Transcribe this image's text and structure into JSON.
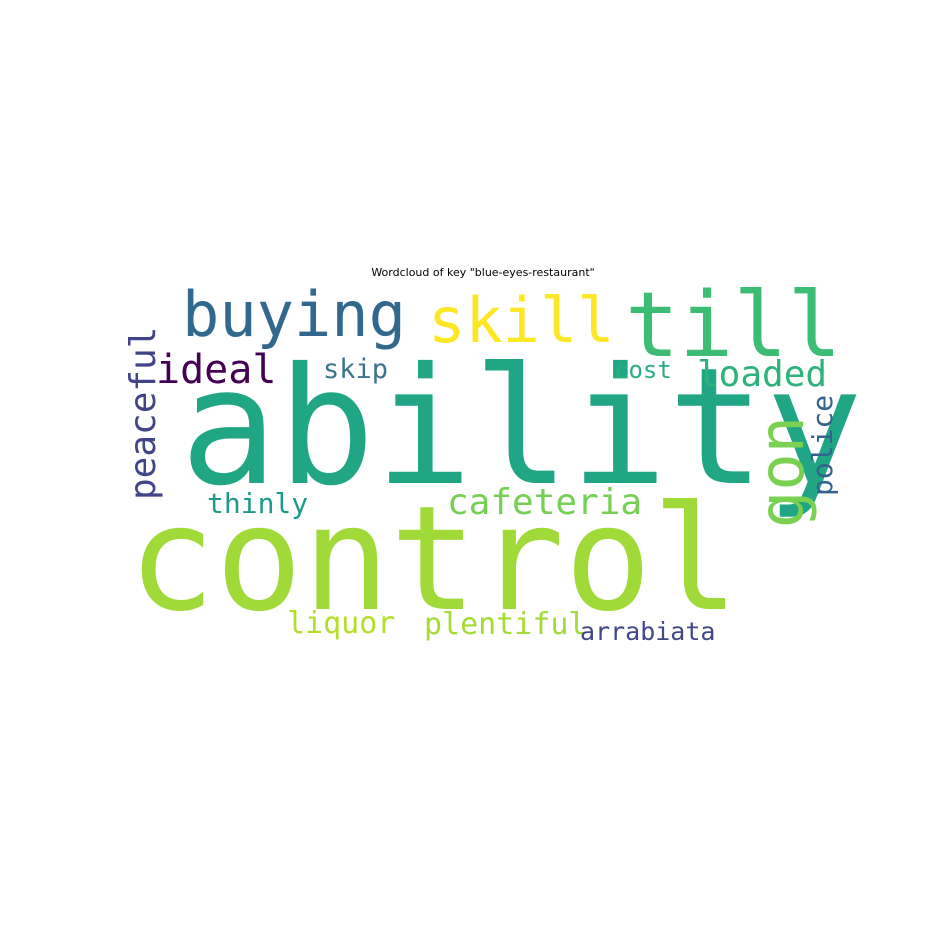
{
  "chart_data": {
    "type": "wordcloud",
    "title": "Wordcloud of key \"blue-eyes-restaurant\"",
    "words": [
      {
        "text": "ability",
        "color": "#21a685"
      },
      {
        "text": "control",
        "color": "#a0da39"
      },
      {
        "text": "till",
        "color": "#3dbc74"
      },
      {
        "text": "skill",
        "color": "#fde725"
      },
      {
        "text": "buying",
        "color": "#31688e"
      },
      {
        "text": "cafeteria",
        "color": "#75d054"
      },
      {
        "text": "loaded",
        "color": "#2db27d"
      },
      {
        "text": "peaceful",
        "color": "#414487"
      },
      {
        "text": "ideal",
        "color": "#440154"
      },
      {
        "text": "skip",
        "color": "#3b758b"
      },
      {
        "text": "cost",
        "color": "#29af7f"
      },
      {
        "text": "thinly",
        "color": "#1f9a8a"
      },
      {
        "text": "gon",
        "color": "#7ad151"
      },
      {
        "text": "police",
        "color": "#33638d"
      },
      {
        "text": "liquor",
        "color": "#b5de2b"
      },
      {
        "text": "plentiful",
        "color": "#a5db36"
      },
      {
        "text": "arrabiata",
        "color": "#3f4889"
      }
    ]
  }
}
